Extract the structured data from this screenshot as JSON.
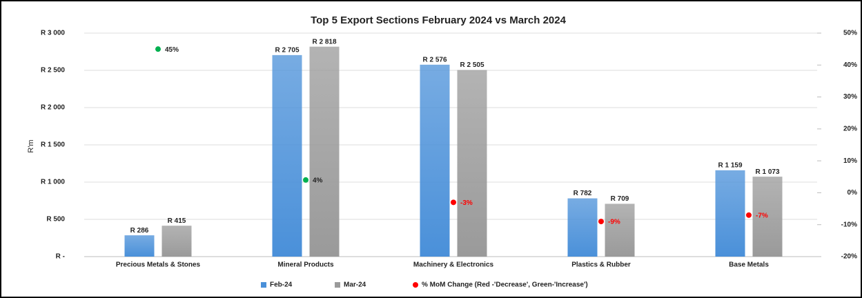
{
  "chart_data": {
    "type": "bar",
    "title": "Top 5 Export Sections February 2024 vs March 2024",
    "ylabel": "R'm",
    "categories": [
      "Precious Metals & Stones",
      "Mineral Products",
      "Machinery & Electronics",
      "Plastics & Rubber",
      "Base Metals"
    ],
    "series": [
      {
        "name": "Feb-24",
        "color": "#4a90d9",
        "values": [
          286,
          2705,
          2576,
          782,
          1159
        ],
        "value_labels": [
          "R 286",
          "R 2 705",
          "R 2 576",
          "R 782",
          "R 1 159"
        ]
      },
      {
        "name": "Mar-24",
        "color": "#9a9a9a",
        "values": [
          415,
          2818,
          2505,
          709,
          1073
        ],
        "value_labels": [
          "R 415",
          "R 2 818",
          "R 2 505",
          "R 709",
          "R 1 073"
        ]
      },
      {
        "name": "% MoM Change (Red -'Decrease', Green-'Increase')",
        "type": "scatter",
        "axis": "y2",
        "color": "#ff0000",
        "colors": [
          "#00b050",
          "#00b050",
          "#ff0000",
          "#ff0000",
          "#ff0000"
        ],
        "values": [
          45,
          4,
          -3,
          -9,
          -7
        ],
        "value_labels": [
          "45%",
          "4%",
          "-3%",
          "-9%",
          "-7%"
        ]
      }
    ],
    "ylim": [
      0,
      3000
    ],
    "yticks": [
      {
        "value": 0,
        "label": "R -"
      },
      {
        "value": 500,
        "label": "R  500"
      },
      {
        "value": 1000,
        "label": "R 1 000"
      },
      {
        "value": 1500,
        "label": "R 1 500"
      },
      {
        "value": 2000,
        "label": "R 2 000"
      },
      {
        "value": 2500,
        "label": "R 2 500"
      },
      {
        "value": 3000,
        "label": "R 3 000"
      }
    ],
    "y2lim": [
      -20,
      50
    ],
    "y2ticks": [
      {
        "value": -20,
        "label": "-20%"
      },
      {
        "value": -10,
        "label": "-10%"
      },
      {
        "value": 0,
        "label": "0%"
      },
      {
        "value": 10,
        "label": "10%"
      },
      {
        "value": 20,
        "label": "20%"
      },
      {
        "value": 30,
        "label": "30%"
      },
      {
        "value": 40,
        "label": "40%"
      },
      {
        "value": 50,
        "label": "50%"
      }
    ],
    "grid": true,
    "legend": "bottom"
  }
}
